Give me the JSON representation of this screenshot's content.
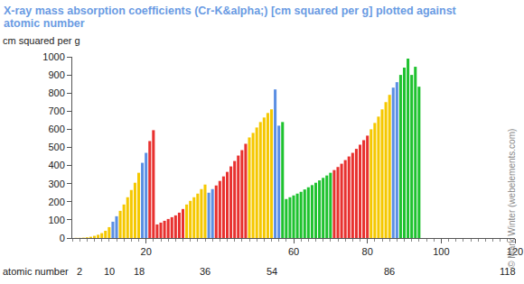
{
  "chart_data": {
    "type": "bar",
    "title": "X-ray mass absorption coefficients (Cr-K&alpha;) [cm squared per g] plotted against atomic number",
    "ylabel": "cm squared per g",
    "xlabel": "atomic number",
    "credit": "© Mark Winter (webelements.com)",
    "x": [
      1,
      2,
      3,
      4,
      5,
      6,
      7,
      8,
      9,
      10,
      11,
      12,
      13,
      14,
      15,
      16,
      17,
      18,
      19,
      20,
      21,
      22,
      23,
      24,
      25,
      26,
      27,
      28,
      29,
      30,
      31,
      32,
      33,
      34,
      35,
      36,
      37,
      38,
      39,
      40,
      41,
      42,
      43,
      44,
      45,
      46,
      47,
      48,
      49,
      50,
      51,
      52,
      53,
      54,
      55,
      56,
      57,
      58,
      59,
      60,
      61,
      62,
      63,
      64,
      65,
      66,
      67,
      68,
      69,
      70,
      71,
      72,
      73,
      74,
      75,
      76,
      77,
      78,
      79,
      80,
      81,
      82,
      83,
      84,
      85,
      86,
      87,
      88,
      89,
      90,
      91,
      92,
      93,
      94
    ],
    "values": [
      1,
      1,
      2,
      4,
      7,
      12,
      18,
      27,
      40,
      60,
      90,
      120,
      150,
      185,
      225,
      265,
      305,
      360,
      415,
      470,
      535,
      595,
      75,
      85,
      95,
      105,
      115,
      125,
      140,
      160,
      185,
      205,
      225,
      245,
      270,
      295,
      250,
      270,
      290,
      315,
      340,
      365,
      395,
      425,
      455,
      485,
      520,
      555,
      580,
      610,
      640,
      665,
      690,
      710,
      820,
      620,
      640,
      215,
      225,
      235,
      245,
      255,
      268,
      280,
      292,
      305,
      318,
      332,
      345,
      360,
      375,
      392,
      410,
      430,
      450,
      470,
      492,
      515,
      540,
      565,
      600,
      635,
      670,
      710,
      750,
      790,
      830,
      860,
      900,
      940,
      990,
      900,
      945,
      835
    ],
    "colors": [
      "#f5c800",
      "#f5c800",
      "#f5c800",
      "#f5c800",
      "#f5c800",
      "#f5c800",
      "#f5c800",
      "#f5c800",
      "#f5c800",
      "#f5c800",
      "#5b8fe3",
      "#5b8fe3",
      "#f5c800",
      "#f5c800",
      "#f5c800",
      "#f5c800",
      "#f5c800",
      "#f5c800",
      "#5b8fe3",
      "#5b8fe3",
      "#e8312f",
      "#e8312f",
      "#e8312f",
      "#e8312f",
      "#e8312f",
      "#e8312f",
      "#e8312f",
      "#e8312f",
      "#e8312f",
      "#e8312f",
      "#f5c800",
      "#f5c800",
      "#f5c800",
      "#f5c800",
      "#f5c800",
      "#f5c800",
      "#5b8fe3",
      "#5b8fe3",
      "#e8312f",
      "#e8312f",
      "#e8312f",
      "#e8312f",
      "#e8312f",
      "#e8312f",
      "#e8312f",
      "#e8312f",
      "#e8312f",
      "#f5c800",
      "#f5c800",
      "#f5c800",
      "#f5c800",
      "#f5c800",
      "#f5c800",
      "#f5c800",
      "#5b8fe3",
      "#5b8fe3",
      "#1fc22f",
      "#1fc22f",
      "#1fc22f",
      "#1fc22f",
      "#1fc22f",
      "#1fc22f",
      "#1fc22f",
      "#1fc22f",
      "#1fc22f",
      "#1fc22f",
      "#1fc22f",
      "#1fc22f",
      "#1fc22f",
      "#1fc22f",
      "#e8312f",
      "#e8312f",
      "#e8312f",
      "#e8312f",
      "#e8312f",
      "#e8312f",
      "#e8312f",
      "#e8312f",
      "#e8312f",
      "#e8312f",
      "#f5c800",
      "#f5c800",
      "#f5c800",
      "#f5c800",
      "#f5c800",
      "#f5c800",
      "#5b8fe3",
      "#5b8fe3",
      "#1fc22f",
      "#1fc22f",
      "#1fc22f",
      "#1fc22f",
      "#1fc22f",
      "#1fc22f"
    ],
    "xlim": [
      0,
      120
    ],
    "xticks": [
      20,
      60,
      80,
      100,
      120
    ],
    "ylim": [
      0,
      1000
    ],
    "yticks": [
      0,
      100,
      200,
      300,
      400,
      500,
      600,
      700,
      800,
      900,
      1000
    ],
    "annotations": [
      {
        "text": "2",
        "x": 2
      },
      {
        "text": "10",
        "x": 10
      },
      {
        "text": "18",
        "x": 18
      },
      {
        "text": "36",
        "x": 36
      },
      {
        "text": "54",
        "x": 54
      },
      {
        "text": "86",
        "x": 86
      },
      {
        "text": "118",
        "x": 118
      }
    ],
    "grid": false
  }
}
